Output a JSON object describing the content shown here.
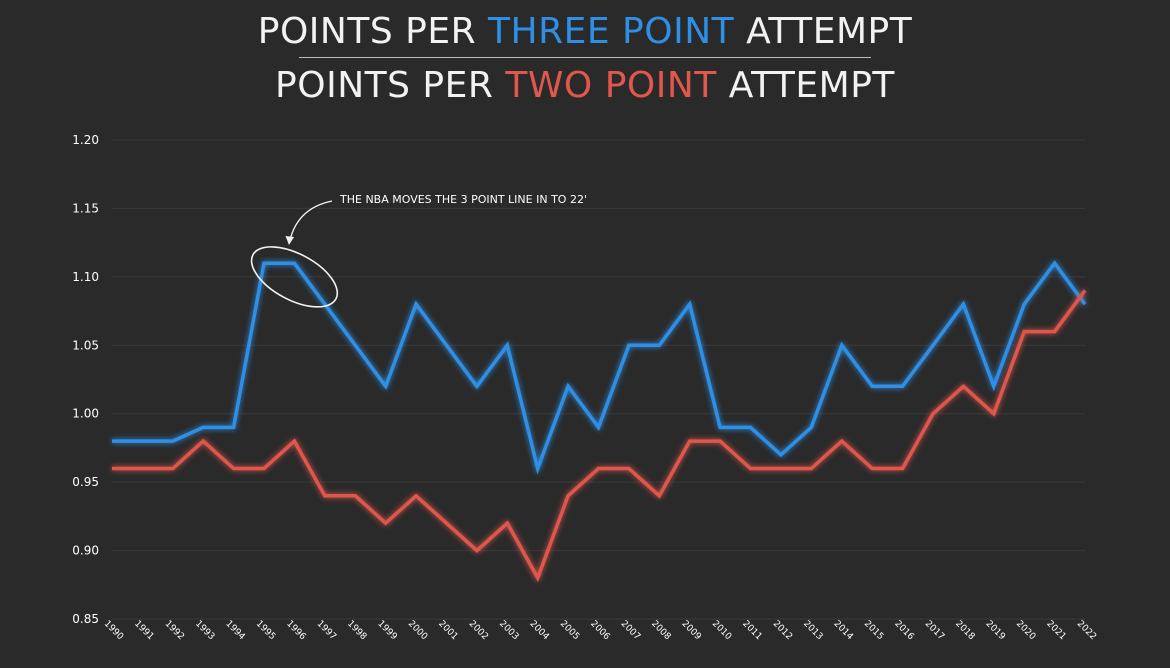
{
  "title": {
    "line1": {
      "prefix": "POINTS PER ",
      "highlight": "THREE POINT",
      "suffix": " ATTEMPT"
    },
    "line2": {
      "prefix": "POINTS PER ",
      "highlight": "TWO POINT",
      "suffix": " ATTEMPT"
    }
  },
  "colors": {
    "background": "#2a2a2a",
    "three_point": "#2e8fe6",
    "two_point": "#e0574c",
    "grid": "#3a3a3a",
    "text": "#ffffff"
  },
  "chart_data": {
    "type": "line",
    "x": [
      "1990",
      "1991",
      "1992",
      "1993",
      "1994",
      "1995",
      "1996",
      "1997",
      "1998",
      "1999",
      "2000",
      "2001",
      "2002",
      "2003",
      "2004",
      "2005",
      "2006",
      "2007",
      "2008",
      "2009",
      "2010",
      "2011",
      "2012",
      "2013",
      "2014",
      "2015",
      "2016",
      "2017",
      "2018",
      "2019",
      "2020",
      "2021",
      "2022"
    ],
    "series": [
      {
        "color": "#2e8fe6",
        "values": [
          0.98,
          0.98,
          0.98,
          0.99,
          0.99,
          1.11,
          1.11,
          1.08,
          1.05,
          1.02,
          1.08,
          1.05,
          1.02,
          1.05,
          0.96,
          1.02,
          0.99,
          1.05,
          1.05,
          1.08,
          0.99,
          0.99,
          0.97,
          0.99,
          1.05,
          1.02,
          1.02,
          1.05,
          1.08,
          1.02,
          1.08,
          1.11,
          1.08
        ]
      },
      {
        "color": "#e0574c",
        "values": [
          0.96,
          0.96,
          0.96,
          0.98,
          0.96,
          0.96,
          0.98,
          0.94,
          0.94,
          0.92,
          0.94,
          0.92,
          0.9,
          0.92,
          0.88,
          0.94,
          0.96,
          0.96,
          0.94,
          0.98,
          0.98,
          0.96,
          0.96,
          0.96,
          0.98,
          0.96,
          0.96,
          1.0,
          1.02,
          1.0,
          1.06,
          1.06,
          1.09
        ]
      }
    ],
    "yticks": [
      "0.85",
      "0.90",
      "0.95",
      "1.00",
      "1.05",
      "1.10",
      "1.15",
      "1.20"
    ],
    "ylim": [
      0.85,
      1.2
    ],
    "grid": true,
    "annotation": {
      "text": "THE NBA MOVES THE 3 POINT LINE IN TO 22'",
      "x": "1996",
      "y": 1.1
    }
  }
}
